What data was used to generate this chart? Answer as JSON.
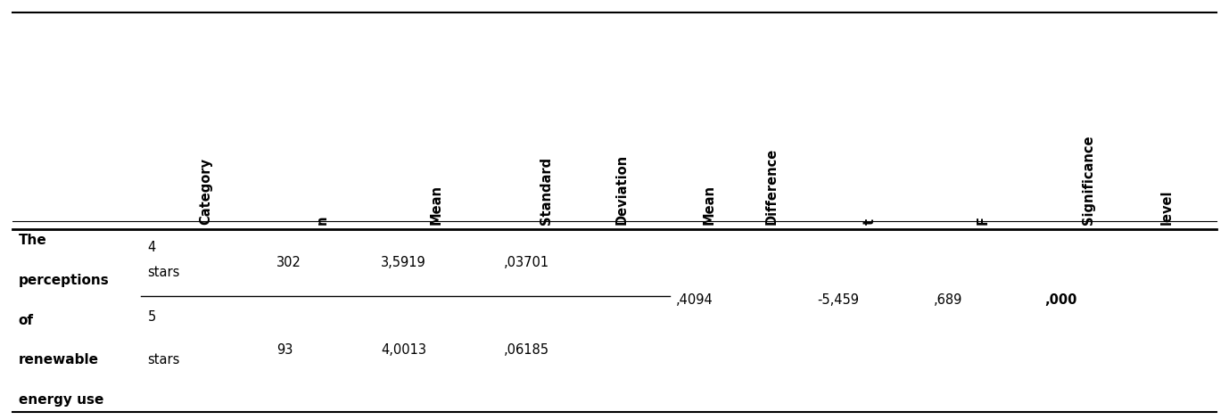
{
  "col_headers_line1": [
    "Category",
    "",
    "Mean",
    "Standard",
    "Mean",
    "",
    "",
    "Significance"
  ],
  "col_headers_line2": [
    "",
    "n",
    "",
    "Deviation",
    "Difference",
    "t",
    "F",
    "level"
  ],
  "row_label": [
    "The",
    "perceptions",
    "of",
    "renewable",
    "energy use"
  ],
  "row1_cat": [
    "4",
    "stars"
  ],
  "row1_n": "302",
  "row1_mean": "3,5919",
  "row1_sd": ",03701",
  "row2_cat": [
    "5",
    "stars"
  ],
  "row2_n": "93",
  "row2_mean": "4,0013",
  "row2_sd": ",06185",
  "mean_diff": ",4094",
  "t_val": "-5,459",
  "f_val": ",689",
  "sig_val": ",000",
  "bg_color": "#ffffff",
  "text_color": "#000000",
  "line_color": "#000000"
}
